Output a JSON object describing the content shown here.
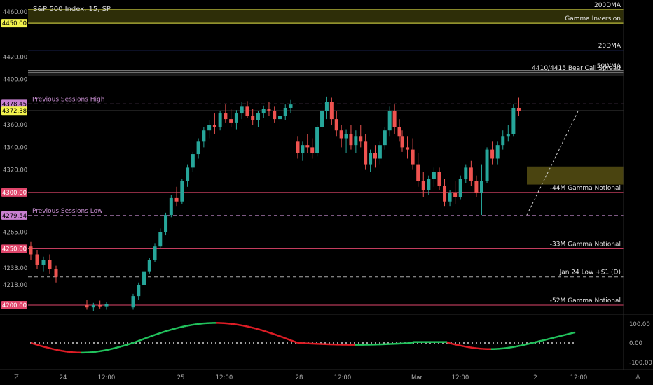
{
  "header": {
    "title": "S&P 500 Index, 15, SP"
  },
  "price_axis_ticks": [
    "4460.00",
    "4420.00",
    "4400.00",
    "4360.00",
    "4340.00",
    "4320.00",
    "4265.00",
    "4233.00",
    "4218.00"
  ],
  "osc_axis_ticks": [
    "100.00",
    "0.00",
    "-100.00"
  ],
  "time_axis_ticks": [
    "24",
    "12:00",
    "25",
    "12:00",
    "28",
    "12:00",
    "Mar",
    "12:00",
    "2",
    "12:00"
  ],
  "bottom_icons": {
    "left": "Z",
    "right": "A"
  },
  "levels": [
    {
      "label": "200DMA",
      "price": 4462,
      "color": "#b5b539",
      "style": "solid",
      "badge": ""
    },
    {
      "label": "Gamma Inversion",
      "price": 4450,
      "color": "#e8e84a",
      "style": "solid",
      "badge": "4450.00",
      "badge_bg": "#f2f24d",
      "badge_fg": "#000"
    },
    {
      "label": "20DMA",
      "price": 4426,
      "color": "#2f3f9a",
      "style": "solid",
      "badge": ""
    },
    {
      "label": "50WMA",
      "price": 4408,
      "color": "#9a9a9a",
      "style": "solid",
      "badge": ""
    },
    {
      "label": "4410/4415 Bear Call Spread",
      "price": 4406,
      "color": "#c0c0c0",
      "style": "solid",
      "badge": ""
    },
    {
      "label": "Previous Sessions High",
      "price": 4378.45,
      "color": "#c78ccf",
      "style": "dashed",
      "badge": "4378.45",
      "badge_bg": "#c77fd0",
      "badge_fg": "#000",
      "label_side": "left"
    },
    {
      "label": "",
      "price": 4372.38,
      "color": "#777",
      "style": "solid",
      "badge": "4372.38",
      "badge_bg": "#f2f24d",
      "badge_fg": "#000"
    },
    {
      "label": "-44M Gamma Notional",
      "price": 4300,
      "color": "#e0466b",
      "style": "solid",
      "badge": "4300.00",
      "badge_bg": "#e0466b",
      "badge_fg": "#fff"
    },
    {
      "label": "Previous Sessions Low",
      "price": 4279.54,
      "color": "#c78ccf",
      "style": "dashed",
      "badge": "4279.54",
      "badge_bg": "#c77fd0",
      "badge_fg": "#000",
      "label_side": "left"
    },
    {
      "label": "-33M Gamma Notional",
      "price": 4250,
      "color": "#e0466b",
      "style": "solid",
      "badge": "4250.00",
      "badge_bg": "#e0466b",
      "badge_fg": "#fff"
    },
    {
      "label": "Jan 24 Low +S1 (D)",
      "price": 4225,
      "color": "#aaa",
      "style": "dashed",
      "badge": ""
    },
    {
      "label": "-52M Gamma Notional",
      "price": 4200,
      "color": "#e0466b",
      "style": "solid",
      "badge": "4200.00",
      "badge_bg": "#e0466b",
      "badge_fg": "#fff"
    }
  ],
  "colors": {
    "up": "#26a69a",
    "down": "#ef5350",
    "osc_up": "#22c55e",
    "osc_down": "#e11d26",
    "zone": "#4a4410"
  },
  "chart_data": {
    "type": "candlestick",
    "title": "S&P 500 Index, 15, SP",
    "ylim": [
      4192,
      4465
    ],
    "candles": [
      [
        4252,
        4256,
        4240,
        4245
      ],
      [
        4245,
        4249,
        4232,
        4236
      ],
      [
        4236,
        4243,
        4230,
        4240
      ],
      [
        4240,
        4245,
        4228,
        4232
      ],
      [
        4232,
        4235,
        4220,
        4225
      ],
      [
        4200,
        4205,
        4196,
        4198
      ],
      [
        4198,
        4202,
        4195,
        4200
      ],
      [
        4200,
        4204,
        4197,
        4199
      ],
      [
        4199,
        4203,
        4196,
        4201
      ],
      [
        4198,
        4210,
        4196,
        4208
      ],
      [
        4208,
        4220,
        4205,
        4218
      ],
      [
        4218,
        4232,
        4215,
        4230
      ],
      [
        4230,
        4242,
        4228,
        4240
      ],
      [
        4240,
        4255,
        4238,
        4252
      ],
      [
        4252,
        4268,
        4250,
        4265
      ],
      [
        4265,
        4282,
        4262,
        4280
      ],
      [
        4280,
        4298,
        4278,
        4295
      ],
      [
        4295,
        4305,
        4288,
        4292
      ],
      [
        4292,
        4312,
        4290,
        4310
      ],
      [
        4310,
        4325,
        4305,
        4322
      ],
      [
        4322,
        4336,
        4318,
        4334
      ],
      [
        4334,
        4348,
        4330,
        4345
      ],
      [
        4345,
        4358,
        4340,
        4355
      ],
      [
        4355,
        4364,
        4348,
        4360
      ],
      [
        4360,
        4370,
        4352,
        4358
      ],
      [
        4358,
        4372,
        4355,
        4370
      ],
      [
        4370,
        4378,
        4362,
        4365
      ],
      [
        4365,
        4374,
        4358,
        4362
      ],
      [
        4362,
        4373,
        4356,
        4370
      ],
      [
        4370,
        4380,
        4365,
        4376
      ],
      [
        4376,
        4381,
        4366,
        4368
      ],
      [
        4368,
        4374,
        4360,
        4364
      ],
      [
        4364,
        4372,
        4358,
        4370
      ],
      [
        4370,
        4377,
        4366,
        4374
      ],
      [
        4374,
        4380,
        4368,
        4372
      ],
      [
        4372,
        4376,
        4362,
        4365
      ],
      [
        4365,
        4372,
        4358,
        4368
      ],
      [
        4368,
        4378,
        4364,
        4375
      ],
      [
        4375,
        4382,
        4370,
        4378
      ],
      [
        4345,
        4350,
        4330,
        4335
      ],
      [
        4335,
        4345,
        4328,
        4342
      ],
      [
        4342,
        4352,
        4335,
        4340
      ],
      [
        4340,
        4348,
        4330,
        4335
      ],
      [
        4335,
        4360,
        4332,
        4358
      ],
      [
        4358,
        4376,
        4355,
        4372
      ],
      [
        4372,
        4385,
        4365,
        4380
      ],
      [
        4380,
        4384,
        4360,
        4365
      ],
      [
        4365,
        4372,
        4350,
        4355
      ],
      [
        4355,
        4360,
        4340,
        4348
      ],
      [
        4348,
        4356,
        4335,
        4352
      ],
      [
        4352,
        4360,
        4338,
        4342
      ],
      [
        4342,
        4355,
        4335,
        4350
      ],
      [
        4350,
        4360,
        4340,
        4345
      ],
      [
        4345,
        4352,
        4320,
        4325
      ],
      [
        4325,
        4338,
        4318,
        4335
      ],
      [
        4335,
        4342,
        4322,
        4330
      ],
      [
        4330,
        4345,
        4325,
        4342
      ],
      [
        4342,
        4358,
        4338,
        4355
      ],
      [
        4355,
        4376,
        4350,
        4372
      ],
      [
        4372,
        4378,
        4352,
        4358
      ],
      [
        4358,
        4365,
        4345,
        4350
      ],
      [
        4350,
        4355,
        4336,
        4340
      ],
      [
        4340,
        4350,
        4330,
        4338
      ],
      [
        4338,
        4348,
        4320,
        4325
      ],
      [
        4325,
        4335,
        4305,
        4310
      ],
      [
        4310,
        4318,
        4296,
        4302
      ],
      [
        4302,
        4315,
        4298,
        4312
      ],
      [
        4312,
        4322,
        4305,
        4318
      ],
      [
        4318,
        4322,
        4302,
        4306
      ],
      [
        4306,
        4312,
        4288,
        4292
      ],
      [
        4292,
        4302,
        4288,
        4300
      ],
      [
        4300,
        4310,
        4290,
        4296
      ],
      [
        4296,
        4315,
        4294,
        4312
      ],
      [
        4312,
        4325,
        4308,
        4322
      ],
      [
        4322,
        4328,
        4306,
        4310
      ],
      [
        4310,
        4315,
        4296,
        4300
      ],
      [
        4300,
        4325,
        4280,
        4310
      ],
      [
        4310,
        4340,
        4308,
        4338
      ],
      [
        4338,
        4345,
        4325,
        4330
      ],
      [
        4330,
        4345,
        4325,
        4342
      ],
      [
        4342,
        4355,
        4338,
        4350
      ],
      [
        4350,
        4360,
        4345,
        4352
      ],
      [
        4352,
        4378,
        4350,
        4375
      ],
      [
        4375,
        4384,
        4368,
        4372
      ]
    ],
    "osc_ylim": [
      -100,
      100
    ]
  }
}
